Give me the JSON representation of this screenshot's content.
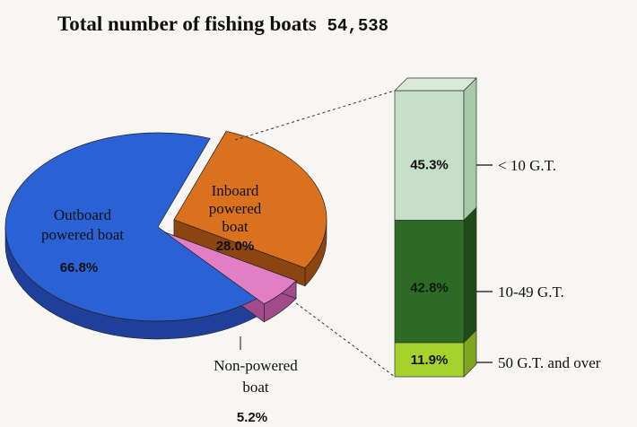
{
  "title": "Total number of fishing boats",
  "total": "54,538",
  "chart_data": [
    {
      "type": "pie",
      "slices": [
        {
          "name_lines": [
            "Outboard",
            "powered boat"
          ],
          "value": 66.8,
          "label": "66.8%",
          "color": "#2a62d6",
          "side": "#1f3f9a"
        },
        {
          "name_lines": [
            "Inboard",
            "powered",
            "boat"
          ],
          "value": 28.0,
          "label": "28.0%",
          "color": "#d9711f",
          "side": "#8c4410"
        },
        {
          "name_lines": [
            "Non-powered",
            "boat"
          ],
          "value": 5.2,
          "label": "5.2%",
          "color": "#e27fc4",
          "side": "#a24b8a"
        }
      ]
    },
    {
      "type": "bar",
      "stacked": true,
      "breakdown_of": "Inboard powered boat",
      "segments": [
        {
          "category": "< 10 G.T.",
          "value": 45.3,
          "label": "45.3%",
          "color": "#c6dfc8"
        },
        {
          "category": "10-49 G.T.",
          "value": 42.8,
          "label": "42.8%",
          "color": "#2d6a26"
        },
        {
          "category": "50 G.T. and over",
          "value": 11.9,
          "label": "11.9%",
          "color": "#a6d22e"
        }
      ]
    }
  ]
}
